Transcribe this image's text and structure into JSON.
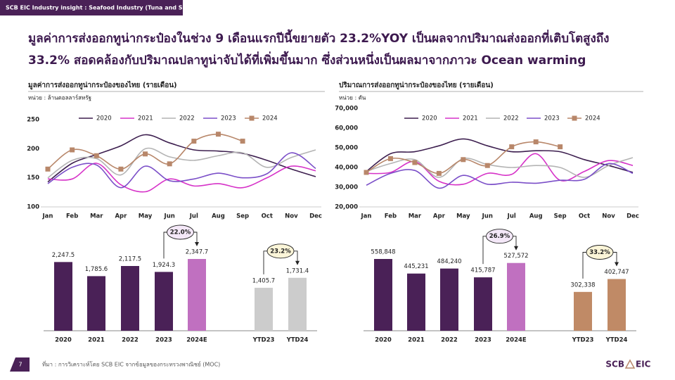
{
  "header": {
    "tag": "SCB EIC Industry insight : Seafood Industry (Tuna and Shrimp)",
    "title": [
      "มูลค่าการส่งออกทูน่ากระป๋องในช่วง 9 เดือนแรกปีนี้ขยายตัว 23.2%YOY เป็นผลจากปริมาณส่งออกที่เติบโตสูงถึง",
      "33.2% สอดคล้องกับปริมาณปลาทูน่าจับได้ที่เพิ่มขึ้นมาก ซึ่งส่วนหนึ่งเป็นผลมาจากภาวะ Ocean warming"
    ]
  },
  "chart_data": [
    {
      "type": "line",
      "title": "มูลค่าการส่งออกทูน่ากระป๋องของไทย (รายเดือน)",
      "subtitle": "หน่วย : ล้านดอลลาร์สหรัฐ",
      "categories": [
        "Jan",
        "Feb",
        "Mar",
        "Apr",
        "May",
        "Jun",
        "Jul",
        "Aug",
        "Sep",
        "Oct",
        "Nov",
        "Dec"
      ],
      "series": [
        {
          "name": "2020",
          "color": "#3d1f4f",
          "values": [
            143,
            175,
            190,
            205,
            224,
            210,
            198,
            196,
            192,
            180,
            165,
            152
          ]
        },
        {
          "name": "2021",
          "color": "#d632c8",
          "values": [
            148,
            148,
            175,
            138,
            126,
            148,
            136,
            140,
            133,
            150,
            170,
            162
          ]
        },
        {
          "name": "2022",
          "color": "#b4b4b4",
          "values": [
            150,
            180,
            183,
            155,
            200,
            186,
            180,
            188,
            193,
            168,
            185,
            198
          ]
        },
        {
          "name": "2023",
          "color": "#7b4fc8",
          "values": [
            140,
            168,
            172,
            133,
            170,
            145,
            148,
            158,
            150,
            157,
            193,
            166
          ]
        },
        {
          "name": "2024",
          "color": "#b8876a",
          "marker": "square",
          "values": [
            165,
            198,
            188,
            165,
            191,
            174,
            213,
            225,
            213,
            null,
            null,
            null
          ]
        }
      ],
      "ylim": [
        100,
        250
      ],
      "yticks": [
        100,
        150,
        200,
        250
      ]
    },
    {
      "type": "line",
      "title": "ปริมาณการส่งออกทูน่ากระป๋องของไทย (รายเดือน)",
      "subtitle": "หน่วย : ตัน",
      "categories": [
        "Jan",
        "Feb",
        "Mar",
        "Apr",
        "May",
        "Jun",
        "Jul",
        "Aug",
        "Sep",
        "Oct",
        "Nov",
        "Dec"
      ],
      "series": [
        {
          "name": "2020",
          "color": "#3d1f4f",
          "values": [
            38000,
            47000,
            48000,
            51000,
            54500,
            51000,
            48000,
            48500,
            48000,
            44000,
            41000,
            37500
          ]
        },
        {
          "name": "2021",
          "color": "#d632c8",
          "values": [
            37000,
            37500,
            43000,
            33000,
            31500,
            37000,
            36500,
            47000,
            33500,
            38000,
            43500,
            41000
          ]
        },
        {
          "name": "2022",
          "color": "#b4b4b4",
          "values": [
            38000,
            42000,
            44000,
            35000,
            44500,
            41500,
            40000,
            41000,
            40000,
            35000,
            41000,
            45000
          ]
        },
        {
          "name": "2023",
          "color": "#7b4fc8",
          "values": [
            31000,
            37000,
            38500,
            29500,
            36000,
            31500,
            32500,
            32000,
            33500,
            34000,
            42000,
            37000
          ]
        },
        {
          "name": "2024",
          "color": "#b8876a",
          "marker": "square",
          "values": [
            37500,
            44500,
            42500,
            37000,
            44000,
            41000,
            50500,
            53000,
            50500,
            null,
            null,
            null
          ]
        }
      ],
      "ylim": [
        20000,
        70000
      ],
      "yticks": [
        {
          "value": 20000,
          "label": "20,000"
        },
        {
          "value": 30000,
          "label": "30,000"
        },
        {
          "value": 40000,
          "label": "40,000"
        },
        {
          "value": 50000,
          "label": "50,000"
        },
        {
          "value": 60000,
          "label": "60,000"
        },
        {
          "value": 70000,
          "label": "70,000"
        }
      ]
    },
    {
      "type": "bar",
      "categories": [
        "2020",
        "2021",
        "2022",
        "2023",
        "2024E",
        "YTD23",
        "YTD24"
      ],
      "values": [
        2247.5,
        1785.6,
        2117.5,
        1924.3,
        2347.7,
        1405.7,
        1731.4
      ],
      "value_labels": [
        "2,247.5",
        "1,785.6",
        "2,117.5",
        "1,924.3",
        "2,347.7",
        "1,405.7",
        "1,731.4"
      ],
      "colors": [
        "#4a2157",
        "#4a2157",
        "#4a2157",
        "#4a2157",
        "#c070c0",
        "#cccccc",
        "#cccccc"
      ],
      "annotations": [
        "22.0%",
        "23.2%"
      ]
    },
    {
      "type": "bar",
      "categories": [
        "2020",
        "2021",
        "2022",
        "2023",
        "2024E",
        "YTD23",
        "YTD24"
      ],
      "values": [
        558848,
        445231,
        484240,
        415787,
        527572,
        302338,
        402747
      ],
      "value_labels": [
        "558,848",
        "445,231",
        "484,240",
        "415,787",
        "527,572",
        "302,338",
        "402,747"
      ],
      "colors": [
        "#4a2157",
        "#4a2157",
        "#4a2157",
        "#4a2157",
        "#c070c0",
        "#c08a66",
        "#c08a66"
      ],
      "annotations": [
        "26.9%",
        "33.2%"
      ]
    }
  ],
  "footer": {
    "page": "7",
    "source": "ที่มา : การวิเคราะห์โดย SCB EIC จากข้อมูลของกระทรวงพาณิชย์ (MOC)",
    "logo": [
      "SCB",
      "EIC"
    ]
  }
}
